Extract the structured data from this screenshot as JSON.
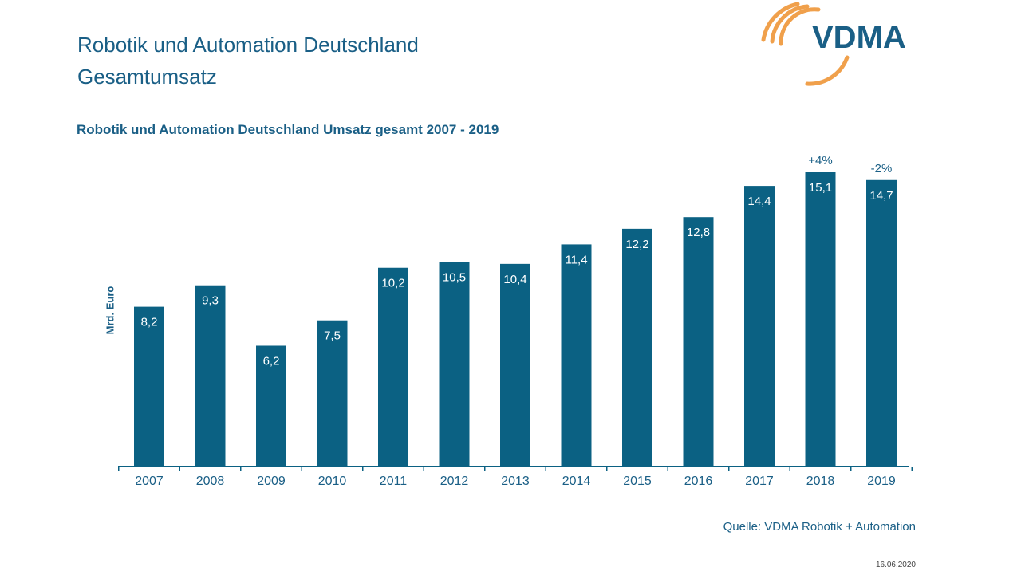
{
  "slide": {
    "title_line1": "Robotik und Automation Deutschland",
    "title_line2": "Gesamtumsatz",
    "source": "Quelle: VDMA Robotik + Automation",
    "date": "16.06.2020"
  },
  "logo": {
    "text": "VDMA",
    "text_color": "#1a5f86",
    "arc_color": "#f0a04b"
  },
  "chart_data": {
    "type": "bar",
    "title": "Robotik und Automation Deutschland Umsatz gesamt 2007 - 2019",
    "xlabel": "",
    "ylabel": "Mrd. Euro",
    "categories": [
      "2007",
      "2008",
      "2009",
      "2010",
      "2011",
      "2012",
      "2013",
      "2014",
      "2015",
      "2016",
      "2017",
      "2018",
      "2019"
    ],
    "values": [
      8.2,
      9.3,
      6.2,
      7.5,
      10.2,
      10.5,
      10.4,
      11.4,
      12.2,
      12.8,
      14.4,
      15.1,
      14.7
    ],
    "value_labels": [
      "8,2",
      "9,3",
      "6,2",
      "7,5",
      "10,2",
      "10,5",
      "10,4",
      "11,4",
      "12,2",
      "12,8",
      "14,4",
      "15,1",
      "14,7"
    ],
    "annotations": [
      {
        "category": "2018",
        "text": "+4%"
      },
      {
        "category": "2019",
        "text": "-2%"
      }
    ],
    "ylim": [
      0,
      15.1
    ],
    "grid": false,
    "bar_color": "#0b6183",
    "label_color": "#ffffff",
    "text_color": "#1a5f86"
  }
}
